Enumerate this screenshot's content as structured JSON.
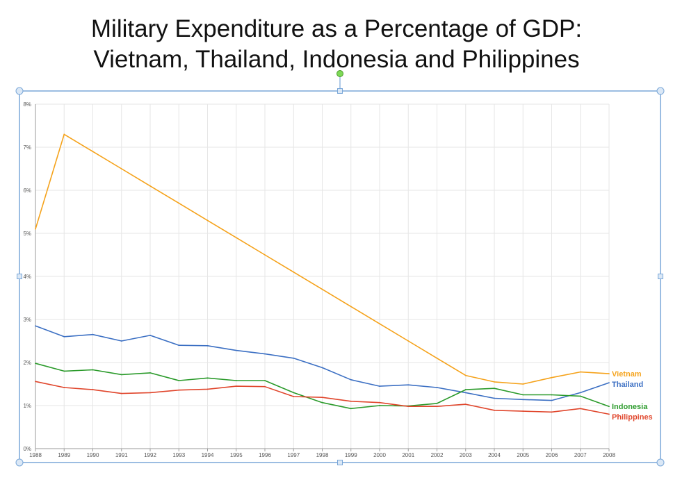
{
  "title": {
    "line1": "Military Expenditure as a Percentage of GDP:",
    "line2": "Vietnam, Thailand, Indonesia and Philippines"
  },
  "chart_data": {
    "type": "line",
    "x": [
      "1988",
      "1989",
      "1990",
      "1991",
      "1992",
      "1993",
      "1994",
      "1995",
      "1996",
      "1997",
      "1998",
      "1999",
      "2000",
      "2001",
      "2002",
      "2003",
      "2004",
      "2005",
      "2006",
      "2007",
      "2008"
    ],
    "ylim": [
      0,
      8
    ],
    "yticks": [
      "0%",
      "1%",
      "2%",
      "3%",
      "4%",
      "5%",
      "6%",
      "7%",
      "8%"
    ],
    "grid": true,
    "legend": "right, labels at line ends",
    "series": [
      {
        "name": "Vietnam",
        "color": "#f5a21a",
        "values": [
          5.1,
          7.3,
          6.9,
          6.5,
          6.1,
          5.7,
          5.3,
          4.9,
          4.5,
          4.1,
          3.7,
          3.3,
          2.9,
          2.5,
          2.1,
          1.7,
          1.55,
          1.5,
          1.65,
          1.78,
          1.74
        ]
      },
      {
        "name": "Thailand",
        "color": "#3b6fc3",
        "values": [
          2.85,
          2.6,
          2.65,
          2.5,
          2.63,
          2.4,
          2.39,
          2.28,
          2.2,
          2.1,
          1.88,
          1.6,
          1.45,
          1.48,
          1.42,
          1.3,
          1.17,
          1.14,
          1.12,
          1.3,
          1.53
        ]
      },
      {
        "name": "Indonesia",
        "color": "#2a9a2a",
        "values": [
          1.98,
          1.8,
          1.83,
          1.72,
          1.76,
          1.58,
          1.64,
          1.58,
          1.58,
          1.3,
          1.07,
          0.93,
          1.0,
          0.99,
          1.05,
          1.37,
          1.4,
          1.25,
          1.25,
          1.22,
          0.98
        ]
      },
      {
        "name": "Philippines",
        "color": "#e0452b",
        "values": [
          1.56,
          1.42,
          1.37,
          1.28,
          1.3,
          1.36,
          1.38,
          1.45,
          1.44,
          1.21,
          1.19,
          1.1,
          1.07,
          0.98,
          0.98,
          1.03,
          0.89,
          0.87,
          0.85,
          0.93,
          0.8
        ]
      }
    ]
  },
  "colors": {
    "frame": "#7aa7d8",
    "handle_fill": "#dbe8f6",
    "rotate_handle": "#7ed957",
    "grid": "#e6e6e6"
  }
}
